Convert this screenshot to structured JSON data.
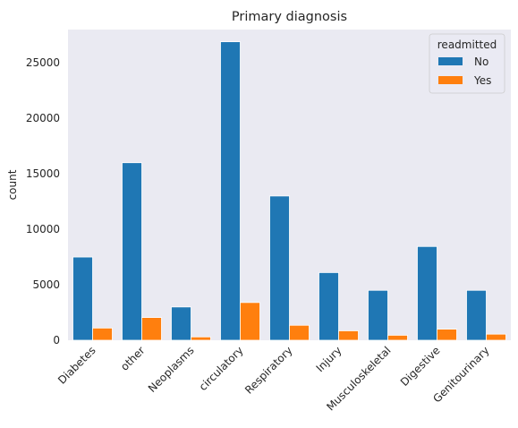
{
  "chart_data": {
    "type": "bar",
    "title": "Primary diagnosis",
    "xlabel": "",
    "ylabel": "count",
    "ylim": [
      0,
      28000
    ],
    "yticks": [
      0,
      5000,
      10000,
      15000,
      20000,
      25000
    ],
    "grid": false,
    "legend": {
      "title": "readmitted",
      "position": "top-right"
    },
    "categories": [
      "Diabetes",
      "other",
      "Neoplasms",
      "circulatory",
      "Respiratory",
      "Injury",
      "Musculoskeletal",
      "Digestive",
      "Genitourinary"
    ],
    "series": [
      {
        "name": "No",
        "color": "#1f77b4",
        "values": [
          7500,
          16000,
          3000,
          26900,
          13000,
          6100,
          4500,
          8450,
          4500
        ]
      },
      {
        "name": "Yes",
        "color": "#ff7f0e",
        "values": [
          1100,
          2050,
          300,
          3400,
          1350,
          850,
          450,
          1000,
          550
        ]
      }
    ]
  },
  "colors": {
    "plot_background": "#eaeaf2"
  }
}
